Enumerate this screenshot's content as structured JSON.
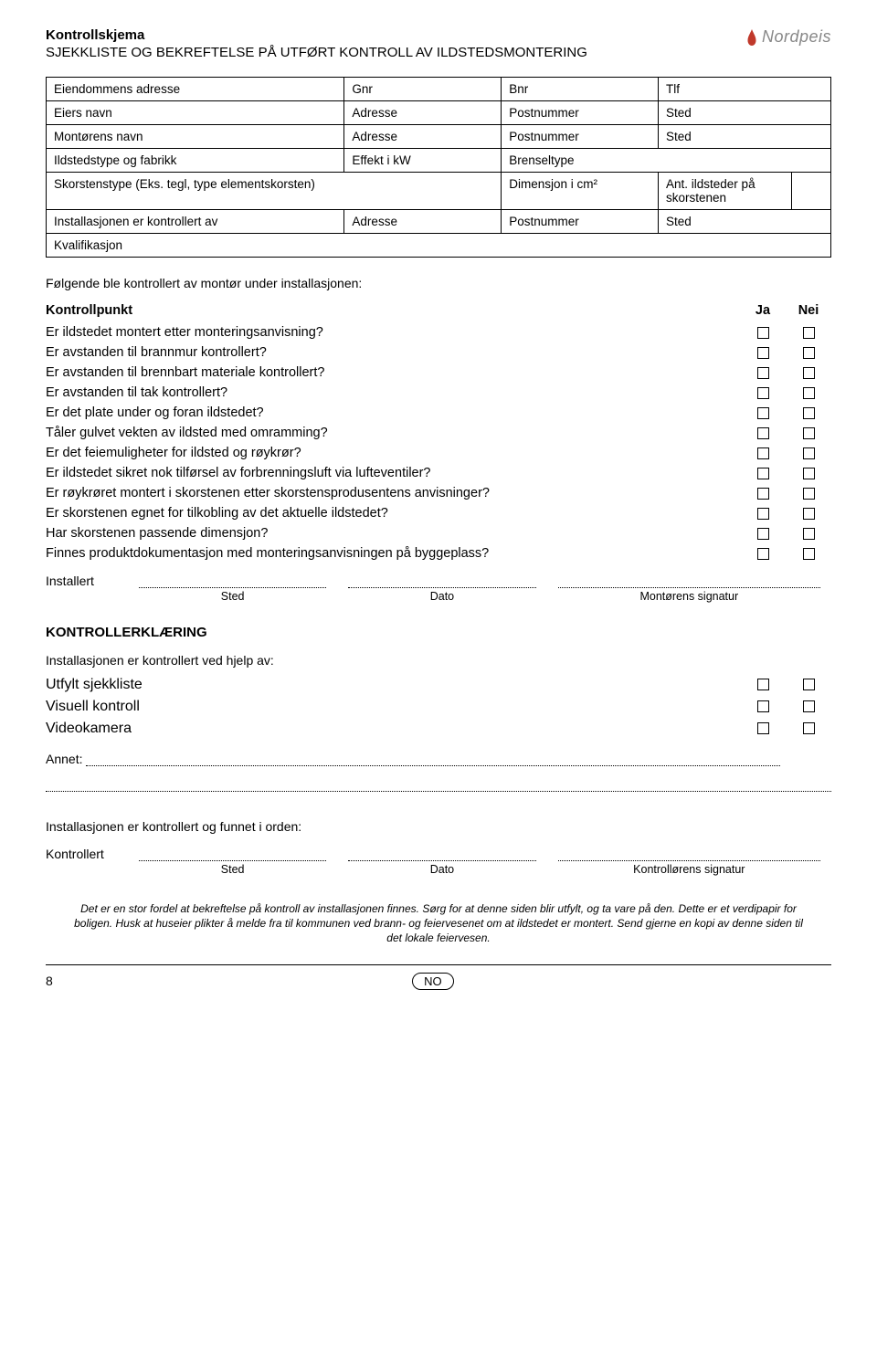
{
  "header": {
    "title": "Kontrollskjema",
    "subtitle": "SJEKKLISTE OG BEKREFTELSE PÅ UTFØRT KONTROLL AV ILDSTEDSMONTERING",
    "logo_text": "Nordpeis"
  },
  "info_table": {
    "rows": [
      [
        "Eiendommens adresse",
        "Gnr",
        "Bnr",
        "Tlf",
        ""
      ],
      [
        "Eiers navn",
        "Adresse",
        "Postnummer",
        "Sted",
        ""
      ],
      [
        "Montørens navn",
        "Adresse",
        "Postnummer",
        "Sted",
        ""
      ],
      [
        "Ildstedstype og fabrikk",
        "Effekt i kW",
        "Brenseltype",
        "",
        ""
      ],
      [
        "Skorstenstype (Eks. tegl, type elementskorsten)",
        "Dimensjon i cm²",
        "Ant. ildsteder på skorstenen",
        "",
        ""
      ],
      [
        "Installasjonen er kontrollert av",
        "Adresse",
        "Postnummer",
        "Sted",
        ""
      ],
      [
        "Kvalifikasjon",
        "",
        "",
        "",
        ""
      ]
    ]
  },
  "checklist_intro": "Følgende ble kontrollert av montør under installasjonen:",
  "checklist_header": {
    "q": "Kontrollpunkt",
    "ja": "Ja",
    "nei": "Nei"
  },
  "checklist": [
    "Er ildstedet montert etter monteringsanvisning?",
    "Er avstanden til brannmur kontrollert?",
    "Er avstanden til brennbart materiale kontrollert?",
    "Er avstanden til tak kontrollert?",
    "Er det plate under og foran ildstedet?",
    "Tåler gulvet vekten av ildsted med omramming?",
    "Er det feiemuligheter for ildsted og røykrør?",
    "Er ildstedet sikret nok tilførsel av forbrenningsluft via lufteventiler?",
    "Er røykrøret montert i skorstenen etter skorstensprodusentens anvisninger?",
    "Er skorstenen egnet for tilkobling av det aktuelle ildstedet?",
    "Har skorstenen passende dimensjon?",
    "Finnes produktdokumentasjon med monteringsanvisningen på byggeplass?"
  ],
  "installert": {
    "label": "Installert",
    "captions": [
      "Sted",
      "Dato",
      "Montørens signatur"
    ]
  },
  "kontroll_section": {
    "heading": "KONTROLLERKLÆRING",
    "sub": "Installasjonen er kontrollert ved hjelp av:",
    "items": [
      "Utfylt sjekkliste",
      "Visuell kontroll",
      "Videokamera"
    ]
  },
  "annet_label": "Annet:",
  "found_ok": "Installasjonen er kontrollert og funnet i orden:",
  "kontrollert": {
    "label": "Kontrollert",
    "captions": [
      "Sted",
      "Dato",
      "Kontrollørens signatur"
    ]
  },
  "footer_note": "Det er en stor fordel at bekreftelse på kontroll av installasjonen finnes. Sørg for at denne siden blir utfylt, og ta vare på den. Dette er et verdipapir for boligen. Husk at huseier plikter å melde fra til kommunen ved brann- og feiervesenet om at ildstedet er montert. Send gjerne en kopi av denne siden til det lokale feiervesen.",
  "page_number": "8",
  "lang": "NO"
}
